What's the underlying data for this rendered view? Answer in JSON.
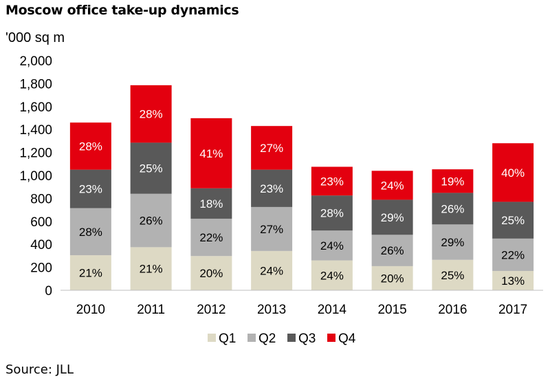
{
  "title": "Moscow office take-up dynamics",
  "unit": "'000 sq m",
  "source": "Source: JLL",
  "chart_data": {
    "type": "bar",
    "stacked": true,
    "title": "Moscow office take-up dynamics",
    "ylabel": "'000 sq m",
    "xlabel": "",
    "ylim": [
      0,
      2000
    ],
    "yticks": [
      0,
      200,
      400,
      600,
      800,
      1000,
      1200,
      1400,
      1600,
      1800,
      2000
    ],
    "ytick_labels": [
      "0",
      "200",
      "400",
      "600",
      "800",
      "1,000",
      "1,200",
      "1,400",
      "1,600",
      "1,800",
      "2,000"
    ],
    "categories": [
      "2010",
      "2011",
      "2012",
      "2013",
      "2014",
      "2015",
      "2016",
      "2017"
    ],
    "grid": false,
    "legend": "bottom",
    "series": [
      {
        "name": "Q1",
        "color": "#ddd9c4",
        "label_color": "#000000",
        "values": [
          305,
          375,
          298,
          342,
          260,
          210,
          265,
          168
        ],
        "labels": [
          "21%",
          "21%",
          "20%",
          "24%",
          "24%",
          "20%",
          "25%",
          "13%"
        ]
      },
      {
        "name": "Q2",
        "color": "#b2b2b2",
        "label_color": "#000000",
        "values": [
          410,
          465,
          325,
          383,
          260,
          273,
          308,
          282
        ],
        "labels": [
          "28%",
          "26%",
          "22%",
          "27%",
          "24%",
          "26%",
          "29%",
          "22%"
        ]
      },
      {
        "name": "Q3",
        "color": "#595959",
        "label_color": "#ffffff",
        "values": [
          335,
          445,
          265,
          325,
          305,
          305,
          275,
          320
        ],
        "labels": [
          "23%",
          "25%",
          "18%",
          "23%",
          "28%",
          "29%",
          "26%",
          "25%"
        ]
      },
      {
        "name": "Q4",
        "color": "#e3000f",
        "label_color": "#ffffff",
        "values": [
          410,
          500,
          610,
          380,
          250,
          252,
          205,
          510
        ],
        "labels": [
          "28%",
          "28%",
          "41%",
          "27%",
          "23%",
          "24%",
          "19%",
          "40%"
        ]
      }
    ]
  }
}
